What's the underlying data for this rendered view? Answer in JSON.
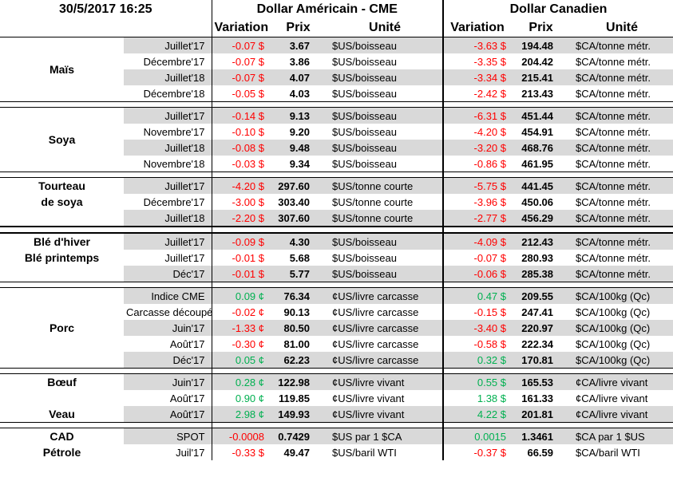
{
  "header": {
    "datetime": "30/5/2017 16:25",
    "groups": [
      {
        "title": "Dollar Américain - CME",
        "columns": [
          "Variation",
          "Prix",
          "Unité"
        ]
      },
      {
        "title": "Dollar Canadien",
        "columns": [
          "Variation",
          "Prix",
          "Unité"
        ]
      }
    ]
  },
  "sections": [
    {
      "label": "Maïs",
      "rows": [
        {
          "contract": "Juillet'17",
          "us": [
            "-0.07 $",
            "3.67",
            "$US/boisseau"
          ],
          "ca": [
            "-3.63 $",
            "194.48",
            "$CA/tonne métr."
          ]
        },
        {
          "contract": "Décembre'17",
          "us": [
            "-0.07 $",
            "3.86",
            "$US/boisseau"
          ],
          "ca": [
            "-3.35 $",
            "204.42",
            "$CA/tonne métr."
          ]
        },
        {
          "contract": "Juillet'18",
          "us": [
            "-0.07 $",
            "4.07",
            "$US/boisseau"
          ],
          "ca": [
            "-3.34 $",
            "215.41",
            "$CA/tonne métr."
          ]
        },
        {
          "contract": "Décembre'18",
          "us": [
            "-0.05 $",
            "4.03",
            "$US/boisseau"
          ],
          "ca": [
            "-2.42 $",
            "213.43",
            "$CA/tonne métr."
          ]
        }
      ]
    },
    {
      "label": "Soya",
      "rows": [
        {
          "contract": "Juillet'17",
          "us": [
            "-0.14 $",
            "9.13",
            "$US/boisseau"
          ],
          "ca": [
            "-6.31 $",
            "451.44",
            "$CA/tonne métr."
          ]
        },
        {
          "contract": "Novembre'17",
          "us": [
            "-0.10 $",
            "9.20",
            "$US/boisseau"
          ],
          "ca": [
            "-4.20 $",
            "454.91",
            "$CA/tonne métr."
          ]
        },
        {
          "contract": "Juillet'18",
          "us": [
            "-0.08 $",
            "9.48",
            "$US/boisseau"
          ],
          "ca": [
            "-3.20 $",
            "468.76",
            "$CA/tonne métr."
          ]
        },
        {
          "contract": "Novembre'18",
          "us": [
            "-0.03 $",
            "9.34",
            "$US/boisseau"
          ],
          "ca": [
            "-0.86 $",
            "461.95",
            "$CA/tonne métr."
          ]
        }
      ]
    },
    {
      "rows": [
        {
          "label": "Tourteau",
          "contract": "Juillet'17",
          "us": [
            "-4.20 $",
            "297.60",
            "$US/tonne courte"
          ],
          "ca": [
            "-5.75 $",
            "441.45",
            "$CA/tonne métr."
          ]
        },
        {
          "label": "de soya",
          "contract": "Décembre'17",
          "us": [
            "-3.00 $",
            "303.40",
            "$US/tonne courte"
          ],
          "ca": [
            "-3.96 $",
            "450.06",
            "$CA/tonne métr."
          ]
        },
        {
          "contract": "Juillet'18",
          "us": [
            "-2.20 $",
            "307.60",
            "$US/tonne courte"
          ],
          "ca": [
            "-2.77 $",
            "456.29",
            "$CA/tonne métr."
          ]
        }
      ]
    },
    {
      "rows": [
        {
          "label": "Blé d'hiver",
          "contract": "Juillet'17",
          "us": [
            "-0.09 $",
            "4.30",
            "$US/boisseau"
          ],
          "ca": [
            "-4.09 $",
            "212.43",
            "$CA/tonne métr."
          ]
        },
        {
          "label": "Blé printemps",
          "contract": "Juillet'17",
          "us": [
            "-0.01 $",
            "5.68",
            "$US/boisseau"
          ],
          "ca": [
            "-0.07 $",
            "280.93",
            "$CA/tonne métr."
          ]
        },
        {
          "contract": "Déc'17",
          "us": [
            "-0.01 $",
            "5.77",
            "$US/boisseau"
          ],
          "ca": [
            "-0.06 $",
            "285.38",
            "$CA/tonne métr."
          ]
        }
      ]
    },
    {
      "label": "Porc",
      "rows": [
        {
          "contract": "Indice CME",
          "us": [
            "0.09 ¢",
            "76.34",
            "¢US/livre carcasse"
          ],
          "ca": [
            "0.47 $",
            "209.55",
            "$CA/100kg (Qc)"
          ]
        },
        {
          "contract": "Carcasse découpée",
          "us": [
            "-0.02 ¢",
            "90.13",
            "¢US/livre carcasse"
          ],
          "ca": [
            "-0.15 $",
            "247.41",
            "$CA/100kg (Qc)"
          ]
        },
        {
          "contract": "Juin'17",
          "us": [
            "-1.33 ¢",
            "80.50",
            "¢US/livre carcasse"
          ],
          "ca": [
            "-3.40 $",
            "220.97",
            "$CA/100kg (Qc)"
          ]
        },
        {
          "contract": "Août'17",
          "us": [
            "-0.30 ¢",
            "81.00",
            "¢US/livre carcasse"
          ],
          "ca": [
            "-0.58 $",
            "222.34",
            "$CA/100kg (Qc)"
          ]
        },
        {
          "contract": "Déc'17",
          "us": [
            "0.05 ¢",
            "62.23",
            "¢US/livre carcasse"
          ],
          "ca": [
            "0.32 $",
            "170.81",
            "$CA/100kg (Qc)"
          ]
        }
      ]
    },
    {
      "rows": [
        {
          "label": "Bœuf",
          "contract": "Juin'17",
          "us": [
            "0.28 ¢",
            "122.98",
            "¢US/livre vivant"
          ],
          "ca": [
            "0.55 $",
            "165.53",
            "¢CA/livre vivant"
          ]
        },
        {
          "contract": "Août'17",
          "us": [
            "0.90 ¢",
            "119.85",
            "¢US/livre vivant"
          ],
          "ca": [
            "1.38 $",
            "161.33",
            "¢CA/livre vivant"
          ]
        },
        {
          "label": "Veau",
          "contract": "Août'17",
          "us": [
            "2.98 ¢",
            "149.93",
            "¢US/livre vivant"
          ],
          "ca": [
            "4.22 $",
            "201.81",
            "¢CA/livre vivant"
          ]
        }
      ]
    },
    {
      "rows": [
        {
          "label": "CAD",
          "contract": "SPOT",
          "us": [
            "-0.0008",
            "0.7429",
            "$US par 1 $CA"
          ],
          "ca": [
            "0.0015",
            "1.3461",
            "$CA par 1 $US"
          ]
        },
        {
          "label": "Pétrole",
          "contract": "Juil'17",
          "us": [
            "-0.33 $",
            "49.47",
            "$US/baril WTI"
          ],
          "ca": [
            "-0.37 $",
            "66.59",
            "$CA/baril WTI"
          ]
        }
      ]
    }
  ]
}
